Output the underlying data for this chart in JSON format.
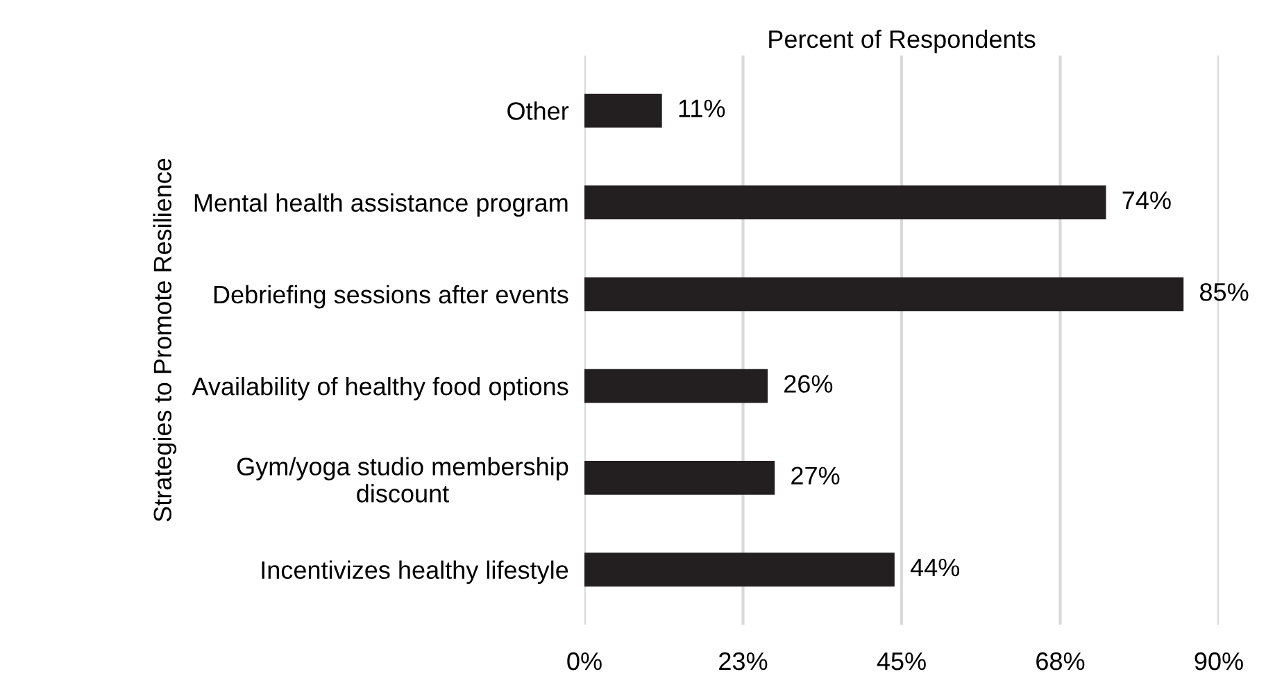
{
  "chart_data": {
    "type": "bar",
    "orientation": "horizontal",
    "xlabel": "Percent of Respondents",
    "ylabel": "Strategies to Promote Resilience",
    "categories": [
      "Other",
      "Mental health assistance program",
      "Debriefing sessions after events",
      "Availability of healthy food options",
      "Gym/yoga studio membership\ndiscount",
      "Incentivizes healthy lifestyle"
    ],
    "values": [
      11,
      74,
      85,
      26,
      27,
      44
    ],
    "value_labels": [
      "11%",
      "74%",
      "85%",
      "26%",
      "27%",
      "44%"
    ],
    "color": "#231f20",
    "xlim": [
      0,
      90
    ],
    "xticks": [
      {
        "value": 0,
        "label": "0%"
      },
      {
        "value": 22.5,
        "label": "23%"
      },
      {
        "value": 45,
        "label": "45%"
      },
      {
        "value": 67.5,
        "label": "68%"
      },
      {
        "value": 90,
        "label": "90%"
      }
    ],
    "grid": "x",
    "legend": false
  }
}
